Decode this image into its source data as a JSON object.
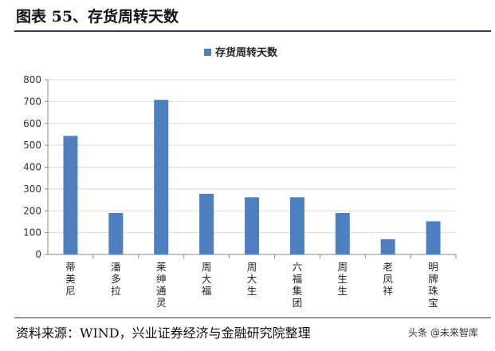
{
  "figure": {
    "title": "图表 55、存货周转天数",
    "source": "资料来源：WIND，兴业证券经济与金融研究院整理",
    "watermark": "头条 @未来智库"
  },
  "chart_data": {
    "type": "bar",
    "legend": [
      "存货周转天数"
    ],
    "legend_position": "top-center",
    "categories": [
      "蒂美尼",
      "潘多拉",
      "莱绅通灵",
      "周大福",
      "周大生",
      "六福集团",
      "周生生",
      "老凤祥",
      "明牌珠宝"
    ],
    "series": [
      {
        "name": "存货周转天数",
        "values": [
          543,
          190,
          708,
          278,
          262,
          262,
          190,
          70,
          152
        ]
      }
    ],
    "ylim": [
      0,
      800
    ],
    "yticks": [
      0,
      100,
      200,
      300,
      400,
      500,
      600,
      700,
      800
    ],
    "grid": true,
    "bar_color": "#4e7fc1"
  }
}
